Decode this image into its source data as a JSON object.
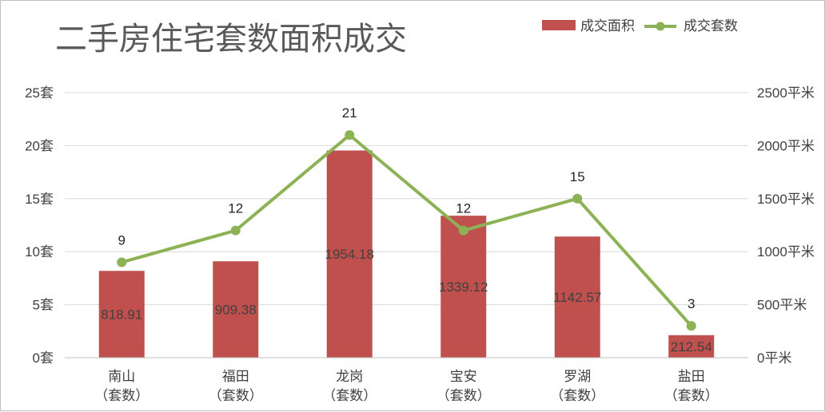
{
  "chart_data": {
    "type": "bar",
    "title": "二手房住宅套数面积成交",
    "categories": [
      "南山",
      "福田",
      "龙岗",
      "宝安",
      "罗湖",
      "盐田"
    ],
    "category_sublabel": "（套数）",
    "series": [
      {
        "name": "成交面积",
        "type": "bar",
        "axis": "right",
        "color": "#c0504d",
        "values": [
          818.91,
          909.38,
          1954.18,
          1339.12,
          1142.57,
          212.54
        ]
      },
      {
        "name": "成交套数",
        "type": "line",
        "axis": "left",
        "color": "#8db255",
        "values": [
          9,
          12,
          21,
          12,
          15,
          3
        ]
      }
    ],
    "y_left": {
      "ylim": [
        0,
        25
      ],
      "ticks": [
        0,
        5,
        10,
        15,
        20,
        25
      ],
      "unit": "套"
    },
    "y_right": {
      "ylim": [
        0,
        2500
      ],
      "ticks": [
        0,
        500,
        1000,
        1500,
        2000,
        2500
      ],
      "unit": "平米"
    },
    "grid": true,
    "legend_position": "top-right"
  }
}
